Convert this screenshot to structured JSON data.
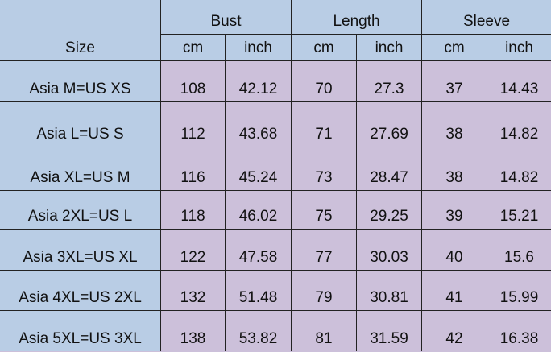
{
  "header": {
    "size": "Size",
    "groups": [
      "Bust",
      "Length",
      "Sleeve"
    ],
    "units": [
      "cm",
      "inch",
      "cm",
      "inch",
      "cm",
      "inch"
    ]
  },
  "rows": [
    {
      "size": "Asia M=US XS",
      "values": [
        "108",
        "42.12",
        "70",
        "27.3",
        "37",
        "14.43"
      ]
    },
    {
      "size": "Asia L=US S",
      "values": [
        "112",
        "43.68",
        "71",
        "27.69",
        "38",
        "14.82"
      ]
    },
    {
      "size": "Asia XL=US M",
      "values": [
        "116",
        "45.24",
        "73",
        "28.47",
        "38",
        "14.82"
      ]
    },
    {
      "size": "Asia 2XL=US L",
      "values": [
        "118",
        "46.02",
        "75",
        "29.25",
        "39",
        "15.21"
      ]
    },
    {
      "size": "Asia 3XL=US XL",
      "values": [
        "122",
        "47.58",
        "77",
        "30.03",
        "40",
        "15.6"
      ]
    },
    {
      "size": "Asia 4XL=US 2XL",
      "values": [
        "132",
        "51.48",
        "79",
        "30.81",
        "41",
        "15.99"
      ]
    },
    {
      "size": "Asia 5XL=US 3XL",
      "values": [
        "138",
        "53.82",
        "81",
        "31.59",
        "42",
        "16.38"
      ]
    }
  ],
  "colors": {
    "header": "#b9cde5",
    "data": "#ccc0da",
    "grid": "#222222"
  }
}
